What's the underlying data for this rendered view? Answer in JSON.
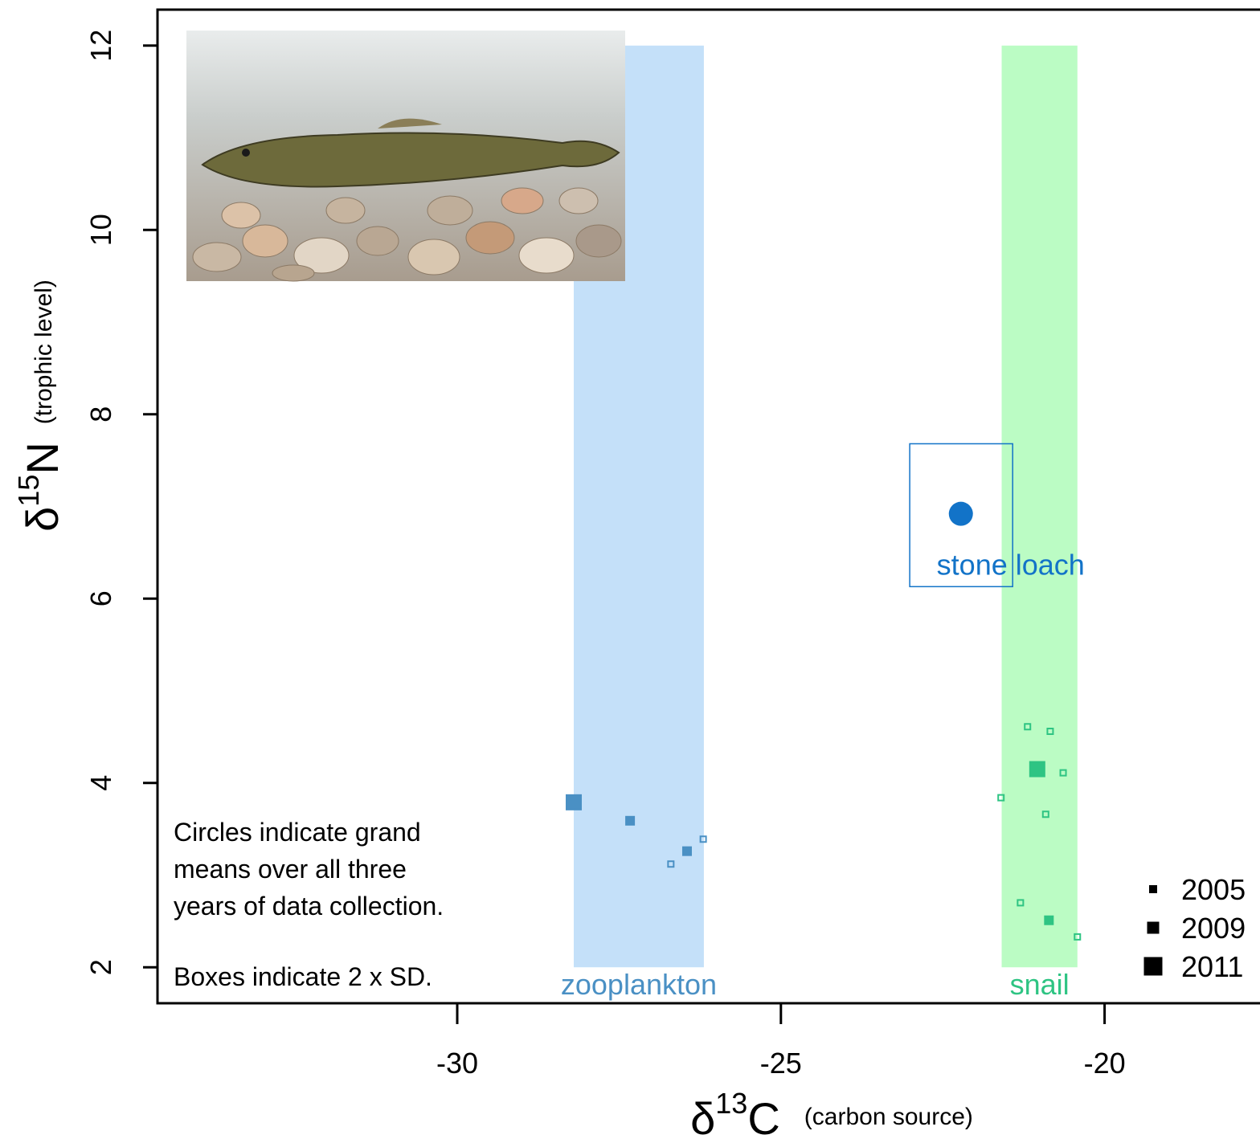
{
  "chart_data": {
    "type": "scatter",
    "x_label": {
      "symbol": "δ",
      "superscript": "13",
      "letter": "C",
      "note": "(carbon source)"
    },
    "y_label": {
      "symbol": "δ",
      "superscript": "15",
      "letter": "N",
      "note": "(trophic level)"
    },
    "xlim": [
      -34.63,
      -17.5
    ],
    "ylim": [
      1.61,
      12.39
    ],
    "xticks": [
      -30,
      -25,
      -20
    ],
    "yticks": [
      2,
      4,
      6,
      8,
      10,
      12
    ],
    "bands": [
      {
        "label": "zooplankton",
        "x": [
          -28.2,
          -26.19
        ],
        "y": [
          2,
          12
        ],
        "color": "#c4e0f9",
        "label_color": "#4a90c4"
      },
      {
        "label": "snail",
        "x": [
          -21.59,
          -20.42
        ],
        "y": [
          2,
          12
        ],
        "color": "#bbfcc4",
        "label_color": "#2ec483"
      }
    ],
    "series": [
      {
        "name": "2005",
        "marker": "hollow",
        "x": [
          -26.7,
          -26.2,
          -21.19,
          -20.84,
          -20.64,
          -21.6,
          -20.91,
          -21.3,
          -20.42
        ],
        "values": [
          3.12,
          3.39,
          4.61,
          4.56,
          4.11,
          3.84,
          3.66,
          2.7,
          2.33
        ],
        "colors": [
          "#4a90c4",
          "#4a90c4",
          "#2ec483",
          "#2ec483",
          "#2ec483",
          "#2ec483",
          "#2ec483",
          "#2ec483",
          "#2ec483"
        ]
      },
      {
        "name": "2009",
        "marker": "filled",
        "x": [
          -27.33,
          -26.45,
          -20.86
        ],
        "values": [
          3.59,
          3.26,
          2.51
        ],
        "colors": [
          "#4a90c4",
          "#4a90c4",
          "#2ec483"
        ]
      },
      {
        "name": "2011",
        "marker": "filled",
        "x": [
          -28.2,
          -21.04
        ],
        "values": [
          3.79,
          4.15
        ],
        "colors": [
          "#4a90c4",
          "#2ec483"
        ]
      }
    ],
    "means": [
      {
        "label": "stone loach",
        "x": -22.22,
        "y": 6.92,
        "color": "#1273c8",
        "box_x": [
          -23.01,
          -21.42
        ],
        "box_y": [
          6.13,
          7.68
        ]
      }
    ],
    "annotations": [
      [
        "Circles indicate grand",
        "means over all three",
        "years of data collection."
      ],
      [
        "Boxes indicate 2 x SD."
      ]
    ]
  }
}
